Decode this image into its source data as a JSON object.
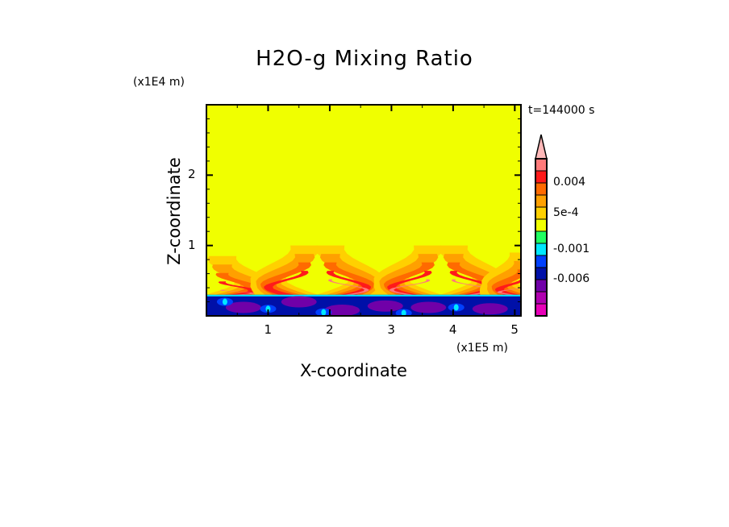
{
  "chart_data": {
    "type": "heatmap",
    "title": "H2O-g Mixing Ratio",
    "xlabel": "X-coordinate",
    "ylabel": "Z-coordinate",
    "x_multiplier": "(x1E5 m)",
    "y_multiplier": "(x1E4 m)",
    "time_label": "t=144000 s",
    "xlim": [
      0,
      5.1
    ],
    "ylim": [
      0,
      3.0
    ],
    "xticks": [
      "1",
      "2",
      "3",
      "4",
      "5"
    ],
    "yticks": [
      "1",
      "2"
    ],
    "background_color": "#f0ff00",
    "surface_layer_top": 0.3,
    "plume_layer_top": 1.0,
    "colorbar": {
      "labels": [
        {
          "text": "0.004",
          "level": 2
        },
        {
          "text": "5e-4",
          "level": 4.5
        },
        {
          "text": "-0.001",
          "level": 7.5
        },
        {
          "text": "-0.006",
          "level": 10
        }
      ],
      "colors": [
        "#ffb8b8",
        "#ff7a7a",
        "#ff1a1a",
        "#ff6a00",
        "#ffa000",
        "#ffd000",
        "#f0ff00",
        "#20ff60",
        "#00e8ff",
        "#0040ff",
        "#0010a8",
        "#7000a8",
        "#b000b0",
        "#e800b8"
      ]
    },
    "plumes": [
      {
        "x": 0.5,
        "top": 0.85,
        "tilt": 0.25,
        "core": 2
      },
      {
        "x": 1.3,
        "top": 1.0,
        "tilt": -0.3,
        "core": 1
      },
      {
        "x": 2.3,
        "top": 1.0,
        "tilt": 0.3,
        "core": 2
      },
      {
        "x": 3.3,
        "top": 1.0,
        "tilt": -0.3,
        "core": 2
      },
      {
        "x": 4.3,
        "top": 1.0,
        "tilt": 0.3,
        "core": 2
      },
      {
        "x": 4.95,
        "top": 0.9,
        "tilt": -0.2,
        "core": 2
      }
    ]
  }
}
